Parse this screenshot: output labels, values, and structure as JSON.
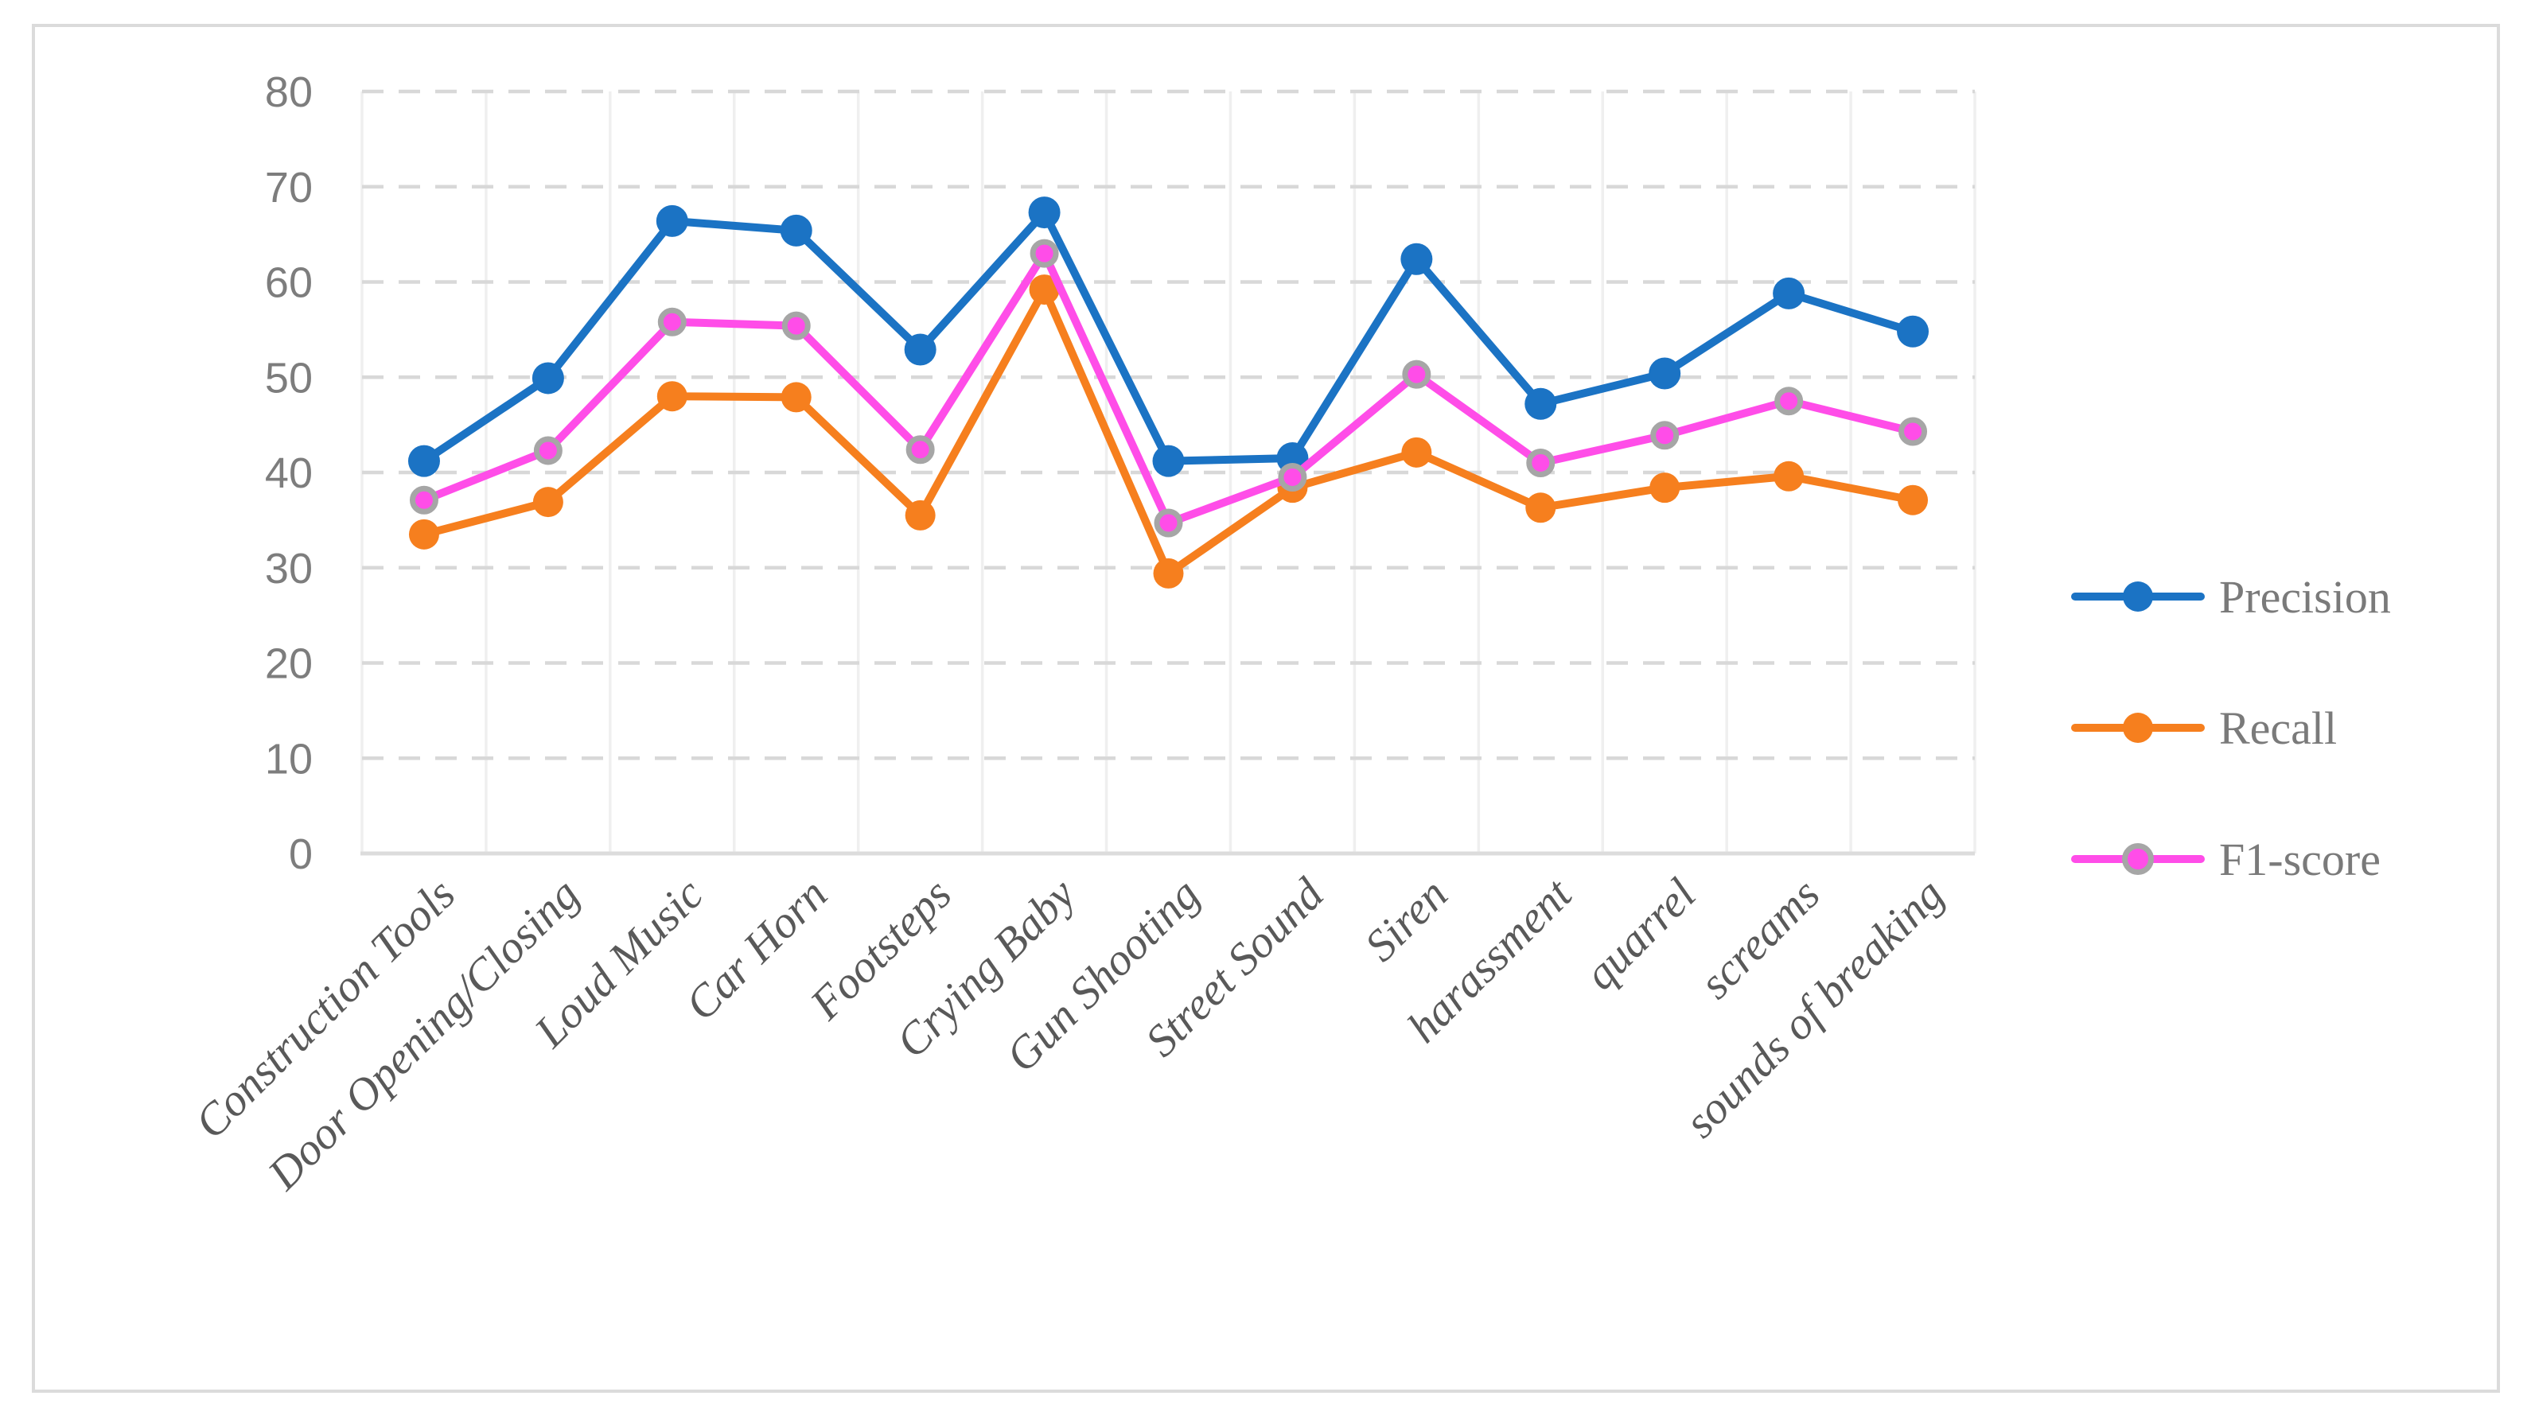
{
  "figure": {
    "background": "#FFFFFF",
    "border_color": "#DBDBDB"
  },
  "chart_data": {
    "type": "line",
    "title": "",
    "xlabel": "",
    "ylabel": "",
    "categories": [
      "Construction Tools",
      "Door Opening/Closing",
      "Loud Music",
      "Car Horn",
      "Footsteps",
      "Crying Baby",
      "Gun Shooting",
      "Street Sound",
      "Siren",
      "harassment",
      "quarrel",
      "screams",
      "sounds of breaking"
    ],
    "series": [
      {
        "name": "Precision",
        "color": "#1B73C4",
        "marker": "circle",
        "values": [
          41.2,
          49.9,
          66.4,
          65.4,
          52.9,
          67.3,
          41.2,
          41.5,
          62.4,
          47.2,
          50.4,
          58.8,
          54.8
        ]
      },
      {
        "name": "Recall",
        "color": "#F67F1E",
        "marker": "circle",
        "values": [
          33.5,
          36.9,
          48.0,
          47.9,
          35.5,
          59.2,
          29.4,
          38.4,
          42.1,
          36.3,
          38.4,
          39.6,
          37.1
        ]
      },
      {
        "name": "F1-score",
        "color": "#FF4DE8",
        "marker": "circle-outlined",
        "marker_outline_color": "#A6A6A6",
        "values": [
          37.1,
          42.3,
          55.8,
          55.4,
          42.4,
          63.0,
          34.7,
          39.5,
          50.3,
          41.0,
          43.9,
          47.5,
          44.3
        ]
      }
    ],
    "ylim": [
      0,
      80
    ],
    "y_ticks": [
      "0",
      "10",
      "20",
      "30",
      "40",
      "50",
      "60",
      "70",
      "80"
    ],
    "grid": {
      "horizontal": "dashed",
      "vertical": "solid"
    },
    "legend_position": "right-center",
    "colors": {
      "horizontal_grid": "#D8D8D8",
      "vertical_grid": "#EFEFEF",
      "axis_line": "#DCDCDC",
      "y_tick_text": "#7D7D7D",
      "x_tick_text": "#595959",
      "legend_text": "#7A7A7A"
    }
  }
}
